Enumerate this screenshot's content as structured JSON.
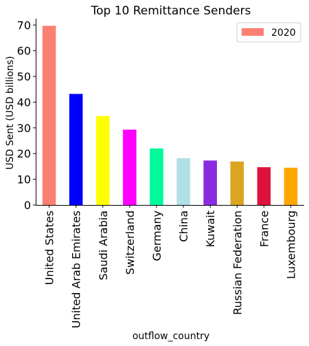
{
  "chart_data": {
    "type": "bar",
    "title": "Top 10 Remittance Senders",
    "xlabel": "outflow_country",
    "ylabel": "USD Sent (USD billions)",
    "ylim": [
      0,
      72.5
    ],
    "yticks": [
      0,
      10,
      20,
      30,
      40,
      50,
      60,
      70
    ],
    "categories": [
      "United States",
      "United Arab Emirates",
      "Saudi Arabia",
      "Switzerland",
      "Germany",
      "China",
      "Kuwait",
      "Russian Federation",
      "France",
      "Luxembourg"
    ],
    "values": [
      69.7,
      43.2,
      34.6,
      29.3,
      22.0,
      18.2,
      17.3,
      16.9,
      14.7,
      14.5
    ],
    "colors": [
      "#FA8072",
      "#0000FF",
      "#FFFF00",
      "#FF00FF",
      "#00FA9A",
      "#B0E0E6",
      "#8A2BE2",
      "#DAA520",
      "#DC143C",
      "#FFA500"
    ],
    "legend": {
      "label": "2020",
      "color": "#FA8072",
      "placement": "top-right"
    },
    "grid": false
  }
}
